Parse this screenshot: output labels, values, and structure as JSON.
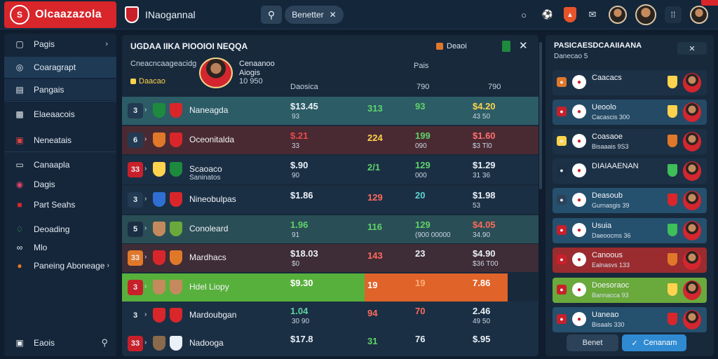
{
  "topbar": {
    "brand_initial": "S",
    "brand_name": "Olcaazazola",
    "title": "INaogannal",
    "filter_label": "Benetter",
    "filter_close": "✕",
    "notification_label": "+",
    "menu_glyph": "⁞⁞"
  },
  "sidebar": {
    "items": [
      {
        "label": "Pagis",
        "icon": "home-icon"
      },
      {
        "label": "Coaragrapt",
        "icon": "compass-icon"
      },
      {
        "label": "Pangais",
        "icon": "book-icon"
      },
      {
        "label": "Elaeaacois",
        "icon": "chart-icon"
      },
      {
        "label": "Neneatais",
        "icon": "tv-icon"
      },
      {
        "label": "Canaapla",
        "icon": "monitor-icon"
      },
      {
        "label": "Dagis",
        "icon": "target-icon"
      },
      {
        "label": "Part Seahs",
        "icon": "stadium-icon"
      },
      {
        "label": "Deoading",
        "icon": "trophy-icon"
      },
      {
        "label": "Mlo",
        "icon": "glasses-icon"
      },
      {
        "label": "Paneing Aboneage",
        "icon": "ball-icon"
      }
    ],
    "footer_label": "Eaois"
  },
  "main": {
    "title": "UGDAA IIKA PIOOIOI NEQQA",
    "subtitle": "Cneacncaageacidg",
    "tag": "Daacao",
    "player_name": "Cenaanoo",
    "player_sub_1": "Aiogis",
    "player_sub_2": "10 950",
    "chip_label": "Deaoi",
    "col_header_pais": "Pais",
    "col_header_b": "Daosica",
    "col_header_c": "790",
    "col_header_d": "790",
    "rows": [
      {
        "num": "3",
        "name": "Naneagda",
        "sub": "",
        "v1": "$13.45",
        "v1s": "93",
        "v2": "313",
        "v3": "93",
        "v3s": "",
        "v4": "$4.20",
        "v4s": "43 50"
      },
      {
        "num": "6",
        "name": "Oceonitalda",
        "sub": "",
        "v1": "$.21",
        "v1s": "33",
        "v2": "224",
        "v3": "199",
        "v3s": "090",
        "v4": "$1.60",
        "v4s": "$3 Tl0"
      },
      {
        "num": "33",
        "name": "Scaoaco",
        "sub": "Saninatos",
        "v1": "$.90",
        "v1s": "90",
        "v2": "2/1",
        "v3": "129",
        "v3s": "000",
        "v4": "$1.29",
        "v4s": "31 36"
      },
      {
        "num": "3",
        "name": "Nineobulpas",
        "sub": "",
        "v1": "$1.86",
        "v1s": "",
        "v2": "129",
        "v3": "20",
        "v3s": "",
        "v4": "$1.98",
        "v4s": "53"
      },
      {
        "num": "5",
        "name": "Conoleard",
        "sub": "",
        "v1": "1.96",
        "v1s": "91",
        "v2": "116",
        "v3": "129",
        "v3s": "(900 00000",
        "v4": "$4.05",
        "v4s": "34.90"
      },
      {
        "num": "33",
        "name": "Mardhacs",
        "sub": "",
        "v1": "$18.03",
        "v1s": "$0",
        "v2": "143",
        "v3": "23",
        "v3s": "",
        "v4": "$4.90",
        "v4s": "$36 T00"
      },
      {
        "num": "3",
        "name": "Hdel Liopy",
        "sub": "",
        "v1": "$9.30",
        "v1s": "",
        "v2": "19",
        "v3": "19",
        "v3s": "",
        "v4": "7.86",
        "v4s": ""
      },
      {
        "num": "3",
        "name": "Mardoubgan",
        "sub": "",
        "v1": "1.04",
        "v1s": "30 90",
        "v2": "94",
        "v3": "70",
        "v3s": "",
        "v4": "2.46",
        "v4s": "49 50"
      },
      {
        "num": "33",
        "name": "Nadooga",
        "sub": "",
        "v1": "$17.8",
        "v1s": "",
        "v2": "31",
        "v3": "76",
        "v3s": "",
        "v4": "$.95",
        "v4s": ""
      }
    ]
  },
  "right": {
    "title": "PASICAESDCAAIIAANA",
    "subtitle": "Danecao 5",
    "close_label": "✕",
    "cards": [
      {
        "name": "Caacacs",
        "sub": "",
        "bg": "#1d3146"
      },
      {
        "name": "Ueoolo",
        "sub": "Cacascis 300",
        "bg": "#254a66"
      },
      {
        "name": "Coasaoe",
        "sub": "Bisaaais 9S3",
        "bg": "#1d3146"
      },
      {
        "name": "DIAIAAENAN",
        "sub": "",
        "bg": "#1d3146"
      },
      {
        "name": "Deasoub",
        "sub": "Gurnasgis 39",
        "bg": "#25506e"
      },
      {
        "name": "Usuia",
        "sub": "Daeoocms 36",
        "bg": "#25506e"
      },
      {
        "name": "Canoous",
        "sub": "Ealnasvs 133",
        "bg": "#9a2b2e"
      },
      {
        "name": "Doesoraoc",
        "sub": "Bannacca 93",
        "bg": "#6aa93c"
      },
      {
        "name": "Uaneao",
        "sub": "Bisaals 330",
        "bg": "#25506e"
      }
    ],
    "cancel_label": "Benet",
    "confirm_label": "Cenanam"
  }
}
